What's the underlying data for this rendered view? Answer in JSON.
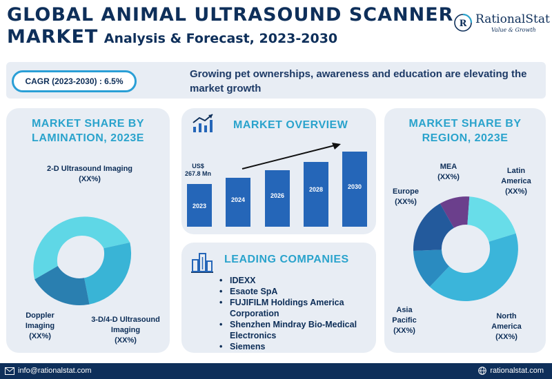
{
  "header": {
    "title_line1": "GLOBAL ANIMAL ULTRASOUND SCANNER",
    "title_line2_big": "MARKET",
    "title_line2_sub": "Analysis & Forecast, 2023-2030"
  },
  "logo": {
    "name": "RationalStat",
    "tagline": "Value & Growth"
  },
  "banner": {
    "cagr": "CAGR (2023-2030) : 6.5%",
    "text": "Growing pet ownerships, awareness and education are elevating the market growth"
  },
  "lamination": {
    "title": "MARKET SHARE BY LAMINATION, 2023E",
    "segments": [
      {
        "name": "2-D Ultrasound Imaging",
        "value": "(XX%)",
        "color": "#5fd7e6"
      },
      {
        "name": "3-D/4-D Ultrasound Imaging",
        "value": "(XX%)",
        "color": "#39b4d6"
      },
      {
        "name": "Doppler Imaging",
        "value": "(XX%)",
        "color": "#2a7fb0"
      }
    ]
  },
  "overview": {
    "title": "MARKET OVERVIEW",
    "start_value_line1": "US$",
    "start_value_line2": "267.8 Mn",
    "years": [
      "2023",
      "2024",
      "2026",
      "2028",
      "2030"
    ],
    "bar_color": "#2566b8"
  },
  "companies": {
    "title": "LEADING COMPANIES",
    "items": [
      "IDEXX",
      "Esaote SpA",
      "FUJIFILM Holdings America Corporation",
      "Shenzhen Mindray Bio-Medical Electronics",
      "Siemens"
    ]
  },
  "region": {
    "title": "MARKET SHARE BY REGION, 2023E",
    "segments": [
      {
        "name": "MEA",
        "value": "(XX%)",
        "color": "#6b3f8c"
      },
      {
        "name": "Latin America",
        "value": "(XX%)",
        "color": "#68dde9"
      },
      {
        "name": "North America",
        "value": "(XX%)",
        "color": "#3bb5da"
      },
      {
        "name": "Asia Pacific",
        "value": "(XX%)",
        "color": "#2a8bc0"
      },
      {
        "name": "Europe",
        "value": "(XX%)",
        "color": "#235a9c"
      }
    ]
  },
  "footer": {
    "email": "info@rationalstat.com",
    "website": "rationalstat.com"
  }
}
